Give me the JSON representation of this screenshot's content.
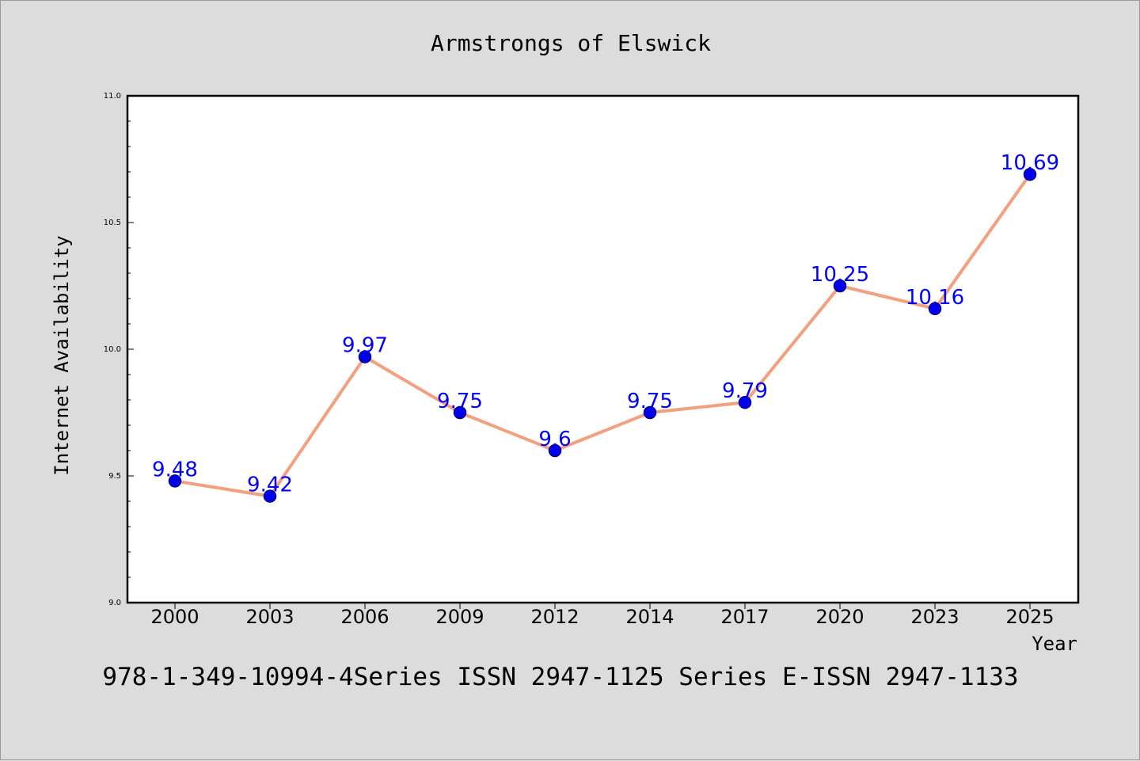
{
  "chart_data": {
    "type": "line",
    "title": "Armstrongs of Elswick",
    "xlabel": "Year",
    "ylabel": "Internet Availability",
    "categories": [
      "2000",
      "2003",
      "2006",
      "2009",
      "2012",
      "2014",
      "2017",
      "2020",
      "2023",
      "2025"
    ],
    "series": [
      {
        "values": [
          9.48,
          9.42,
          9.97,
          9.75,
          9.6,
          9.75,
          9.79,
          10.25,
          10.16,
          10.69
        ]
      }
    ],
    "data_labels": [
      "9.48",
      "9.42",
      "9.97",
      "9.75",
      "9.6",
      "9.75",
      "9.79",
      "10.25",
      "10.16",
      "10.69"
    ],
    "ylim": [
      9.0,
      11.0
    ],
    "yticks": [
      "9.0",
      "9.5",
      "10.0",
      "10.5",
      "11.0"
    ],
    "grid": false,
    "legend": "none",
    "colors": {
      "line": "#f4a07e",
      "marker": "#0000ee",
      "marker_edge": "#00008b",
      "label": "#0000ff",
      "background": "#dcdcdc",
      "plot_background": "#ffffff"
    }
  },
  "footer": {
    "text": "978-1-349-10994-4Series ISSN 2947-1125 Series E-ISSN 2947-1133"
  }
}
